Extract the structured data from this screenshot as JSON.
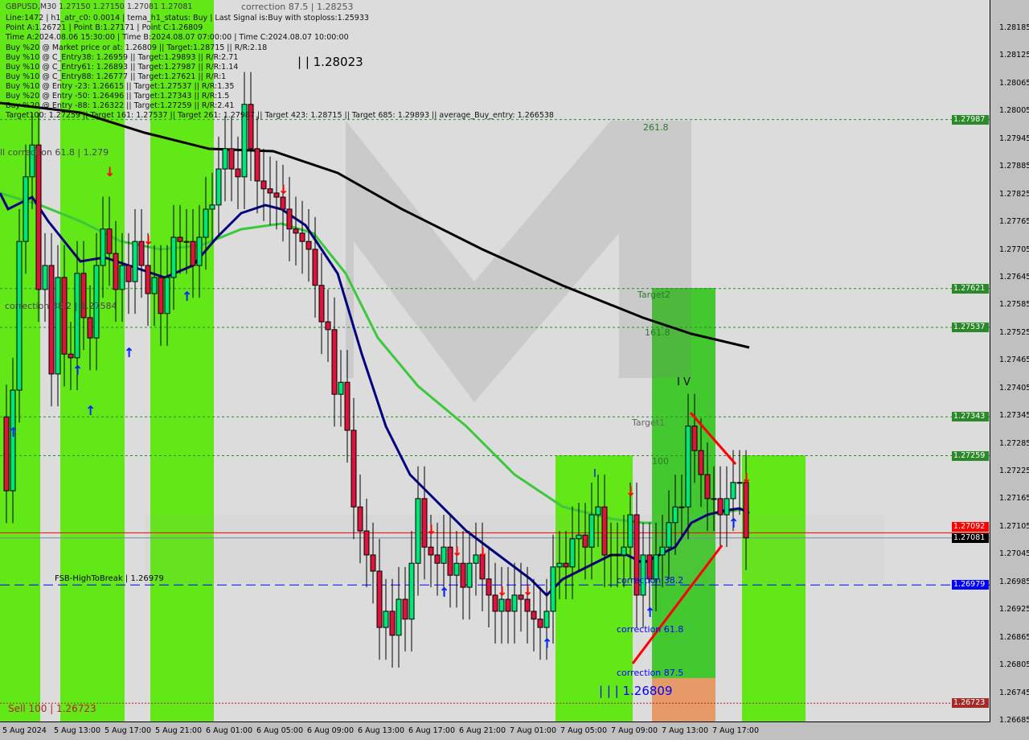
{
  "header": {
    "overlay_label": "correction 87.5 | 1.28253",
    "lines": [
      "GBPUSD,M30  1.27150 1.27150 1.27081 1.27081",
      "Line:1472 | h1_atr_c0: 0.0014 | tema_h1_status: Buy | Last Signal is:Buy with stoploss:1.25933",
      "Point A:1.26721 | Point B:1.27171 | Point C:1.26809",
      "Time A:2024.08.06 15:30:00 | Time B:2024.08.07 07:00:00 | Time C:2024.08.07 10:00:00",
      "Buy %20 @ Market price or at: 1.26809 || Target:1.28715 || R/R:2.18",
      "Buy %10 @ C_Entry38: 1.26959 || Target:1.29893 || R/R:2.71",
      "Buy %10 @ C_Entry61: 1.26893 || Target:1.27987 || R/R:1.14",
      "Buy %10 @ C_Entry88: 1.26777 || Target:1.27621 || R/R:1",
      "Buy %10 @ Entry -23: 1.26615 || Target:1.27537 || R/R:1.35",
      "Buy %20 @ Entry -50: 1.26496 || Target:1.27343 || R/R:1.5",
      "Buy %20 @ Entry -88: 1.26322 || Target:1.27259 || R/R:2.41",
      "Target100: 1.27259 || Target 161: 1.27537 || Target 261: 1.27987 || Target 423: 1.28715 || Target 685: 1.29893 || average_Buy_entry: 1.266538"
    ]
  },
  "watermark": "MARKETSTRADE",
  "chart_data": {
    "type": "candlestick",
    "symbol": "GBPUSD",
    "timeframe": "M30",
    "ylim": [
      1.26665,
      1.28246
    ],
    "price_ticks": [
      "1.28185",
      "1.28125",
      "1.28065",
      "1.28005",
      "1.27945",
      "1.27885",
      "1.27825",
      "1.27765",
      "1.27705",
      "1.27645",
      "1.27585",
      "1.27525",
      "1.27465",
      "1.27405",
      "1.27345",
      "1.27285",
      "1.27225",
      "1.27165",
      "1.27105",
      "1.27045",
      "1.26985",
      "1.26925",
      "1.26865",
      "1.26805",
      "1.26745",
      "1.26685"
    ],
    "time_ticks": [
      "5 Aug 2024",
      "5 Aug 13:00",
      "5 Aug 17:00",
      "5 Aug 21:00",
      "6 Aug 01:00",
      "6 Aug 05:00",
      "6 Aug 09:00",
      "6 Aug 13:00",
      "6 Aug 17:00",
      "6 Aug 21:00",
      "7 Aug 01:00",
      "7 Aug 05:00",
      "7 Aug 09:00",
      "7 Aug 13:00",
      "7 Aug 17:00"
    ],
    "closes": [
      1.27183,
      1.27401,
      1.27723,
      1.27863,
      1.27932,
      1.27619,
      1.27671,
      1.27436,
      1.27645,
      1.27479,
      1.27471,
      1.27654,
      1.27558,
      1.27514,
      1.27671,
      1.2775,
      1.27697,
      1.27619,
      1.27671,
      1.27636,
      1.27723,
      1.27671,
      1.2761,
      1.27645,
      1.27567,
      1.27645,
      1.27732,
      1.27723,
      1.27723,
      1.27671,
      1.27732,
      1.27793,
      1.27802,
      1.2788,
      1.27924,
      1.2788,
      1.27863,
      1.2802,
      1.27924,
      1.27854,
      1.27837,
      1.27828,
      1.27819,
      1.27793,
      1.2775,
      1.27741,
      1.27723,
      1.27706,
      1.27628,
      1.27549,
      1.27532,
      1.27392,
      1.27418,
      1.27314,
      1.27148,
      1.27096,
      1.27044,
      1.27009,
      1.26887,
      1.26922,
      1.2687,
      1.26948,
      1.26905,
      1.27026,
      1.27166,
      1.27061,
      1.27044,
      1.27026,
      1.27061,
      1.27,
      1.27026,
      1.26974,
      1.27026,
      1.27044,
      1.26992,
      1.26957,
      1.26922,
      1.26948,
      1.26922,
      1.26957,
      1.26948,
      1.26922,
      1.26905,
      1.26887,
      1.26922,
      1.27018,
      1.27026,
      1.27018,
      1.27079,
      1.27087,
      1.27061,
      1.27131,
      1.27148,
      1.27044,
      1.27044,
      1.27044,
      1.27061,
      1.27131,
      1.26957,
      1.27044,
      1.26992,
      1.27044,
      1.27061,
      1.27114,
      1.27148,
      1.27148,
      1.27323,
      1.2727,
      1.27218,
      1.27166,
      1.27166,
      1.27131,
      1.27166,
      1.27201,
      1.27201,
      1.27081
    ],
    "signals_up": [
      [
        1,
        1.27314
      ],
      [
        11,
        1.27448
      ],
      [
        13,
        1.27361
      ],
      [
        19,
        1.27486
      ],
      [
        28,
        1.27608
      ],
      [
        68,
        1.26967
      ],
      [
        84,
        1.26857
      ],
      [
        100,
        1.26924
      ],
      [
        113,
        1.27117
      ]
    ],
    "signals_down": [
      [
        16,
        1.27875
      ],
      [
        22,
        1.27727
      ],
      [
        43,
        1.27837
      ],
      [
        66,
        1.271
      ],
      [
        70,
        1.27053
      ],
      [
        74,
        1.27051
      ],
      [
        77,
        1.26966
      ],
      [
        81,
        1.26967
      ],
      [
        97,
        1.27182
      ],
      [
        115,
        1.27211
      ]
    ],
    "levels": [
      {
        "price": 1.27987,
        "tag": "1.27987",
        "color": "#2a8a2a",
        "style": "dash-green"
      },
      {
        "price": 1.27621,
        "tag": "1.27621",
        "color": "#2a8a2a",
        "style": "dash-green"
      },
      {
        "price": 1.27537,
        "tag": "1.27537",
        "color": "#2a8a2a",
        "style": "dash-green"
      },
      {
        "price": 1.27343,
        "tag": "1.27343",
        "color": "#2a8a2a",
        "style": "dash-green"
      },
      {
        "price": 1.27259,
        "tag": "1.27259",
        "color": "#2a8a2a",
        "style": "dash-green"
      },
      {
        "price": 1.27092,
        "tag": "1.27092",
        "color": "#ff0000",
        "style": "solid-red"
      },
      {
        "price": 1.27081,
        "tag": "1.27081",
        "color": "#000000",
        "style": "solid-gray"
      },
      {
        "price": 1.26979,
        "tag": "1.26979",
        "color": "#0000ff",
        "style": "dash-blue"
      },
      {
        "price": 1.26723,
        "tag": "1.26723",
        "color": "#b22222",
        "style": "dot-red"
      }
    ],
    "annotations": {
      "target2": "Target2",
      "fib1618": "161.8",
      "fib2618": "261.8",
      "target1": "Target1",
      "fib100": "100",
      "wave_iv": "I V",
      "wave_i": "I",
      "corr382": "correction 38.2",
      "corr618": "correction 61.8",
      "corr875": "correction 87.5",
      "point_c": "| | | 1.26809",
      "high_level": "| | 1.28023",
      "fsb": "FSB-HighToBreak | 1.26979",
      "sell": "Sell 100 | 1.26723",
      "sell_corr": "ll correction 61.8 | 1.279",
      "corr_left": "correction 38.2 | 1.27584"
    },
    "colors": {
      "bull": "#00e676",
      "bear": "#dc143c",
      "zone": "#62e817",
      "zone_dark": "#44c830",
      "zone_orange": "#e59a68",
      "ma_long": "#000000",
      "ma_mid": "#3cc83c",
      "ma_fast": "#000080"
    }
  }
}
